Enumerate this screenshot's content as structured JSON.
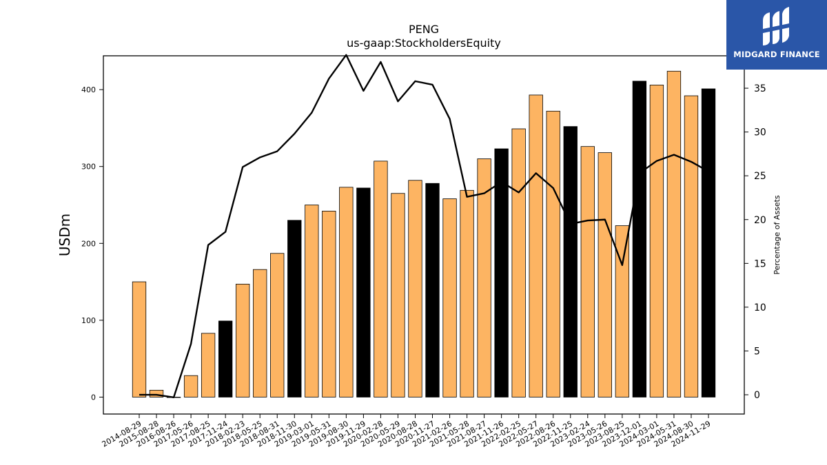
{
  "chart_data": {
    "type": "bar",
    "title": "PENG",
    "subtitle": "us-gaap:StockholdersEquity",
    "ylabel": "USDm",
    "y2label": "Percentage of Assets",
    "ylim": [
      -22,
      444
    ],
    "y2lim": [
      -2.2,
      38.7
    ],
    "yticks": [
      0,
      100,
      200,
      300,
      400
    ],
    "y2ticks": [
      0,
      5,
      10,
      15,
      20,
      25,
      30,
      35
    ],
    "categories": [
      "2014-08-29",
      "2015-08-28",
      "2016-08-26",
      "2017-05-26",
      "2017-08-25",
      "2017-11-24",
      "2018-02-23",
      "2018-05-25",
      "2018-08-31",
      "2018-11-30",
      "2019-03-01",
      "2019-05-31",
      "2019-08-30",
      "2019-11-29",
      "2020-02-28",
      "2020-05-29",
      "2020-08-28",
      "2020-11-27",
      "2021-02-26",
      "2021-05-28",
      "2021-08-27",
      "2021-11-26",
      "2022-02-25",
      "2022-05-27",
      "2022-08-26",
      "2022-11-25",
      "2023-02-24",
      "2023-05-26",
      "2023-08-25",
      "2023-12-01",
      "2024-03-01",
      "2024-05-31",
      "2024-08-30",
      "2024-11-29"
    ],
    "series": [
      {
        "type": "bar",
        "values": [
          150,
          9,
          0,
          28,
          83,
          99,
          147,
          166,
          187,
          230,
          250,
          242,
          273,
          272,
          307,
          265,
          282,
          278,
          258,
          269,
          310,
          323,
          349,
          393,
          372,
          352,
          326,
          318,
          223,
          411,
          406,
          424,
          392,
          401
        ],
        "highlight": [
          false,
          false,
          false,
          false,
          false,
          true,
          false,
          false,
          false,
          true,
          false,
          false,
          false,
          true,
          false,
          false,
          false,
          true,
          false,
          false,
          false,
          true,
          false,
          false,
          false,
          true,
          false,
          false,
          false,
          true,
          false,
          false,
          false,
          true
        ]
      },
      {
        "type": "line",
        "values": [
          0,
          0,
          -0.3,
          5.8,
          17.1,
          18.6,
          26.0,
          27.1,
          27.8,
          29.8,
          32.2,
          36.1,
          38.8,
          34.7,
          38.0,
          33.5,
          35.8,
          35.4,
          31.5,
          22.6,
          23.0,
          24.3,
          23.1,
          25.3,
          23.6,
          19.5,
          19.9,
          20.0,
          14.8,
          25.3,
          26.7,
          27.4,
          26.6,
          25.5
        ]
      }
    ],
    "colors": {
      "bar": "#fdb462",
      "bar_highlight": "#000000",
      "line": "#000000"
    }
  },
  "logo": {
    "brand": "MIDGARD FINANCE",
    "icon": "midgard-logo-icon",
    "color": "#2a56a8"
  }
}
